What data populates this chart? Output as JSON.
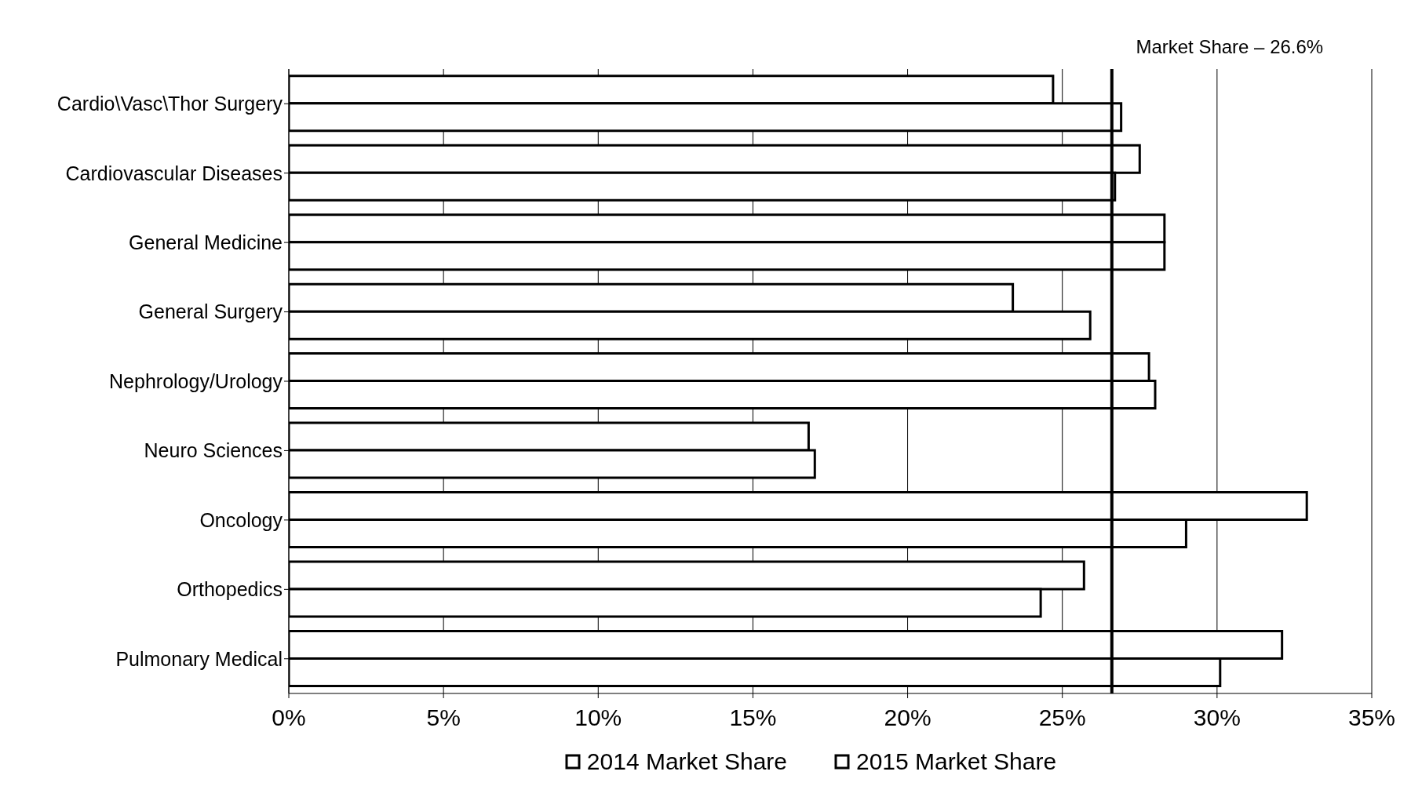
{
  "chart_data": {
    "type": "bar",
    "orientation": "horizontal",
    "categories": [
      "Cardio\\Vasc\\Thor Surgery",
      "Cardiovascular Diseases",
      "General Medicine",
      "General Surgery",
      "Nephrology/Urology",
      "Neuro Sciences",
      "Oncology",
      "Orthopedics",
      "Pulmonary Medical"
    ],
    "series": [
      {
        "name": "2014 Market Share",
        "color": "#ffffff",
        "values": [
          24.7,
          27.5,
          28.3,
          23.4,
          27.8,
          16.8,
          32.9,
          25.7,
          32.1
        ]
      },
      {
        "name": "2015 Market Share",
        "color": "#ffffff",
        "values": [
          26.9,
          26.7,
          28.3,
          25.9,
          28.0,
          17.0,
          29.0,
          24.3,
          30.1
        ]
      }
    ],
    "xlim": [
      0,
      35
    ],
    "xticks": [
      {
        "value": 0,
        "label": "0%"
      },
      {
        "value": 5,
        "label": "5%"
      },
      {
        "value": 10,
        "label": "10%"
      },
      {
        "value": 15,
        "label": "15%"
      },
      {
        "value": 20,
        "label": "20%"
      },
      {
        "value": 25,
        "label": "25%"
      },
      {
        "value": 30,
        "label": "30%"
      },
      {
        "value": 35,
        "label": "35%"
      }
    ],
    "ref_lines": [
      {
        "axis": "x",
        "value": 26.6,
        "label": "Market Share – 26.6%",
        "color": "#000000"
      }
    ],
    "grid": "x",
    "legend": "bottom"
  }
}
